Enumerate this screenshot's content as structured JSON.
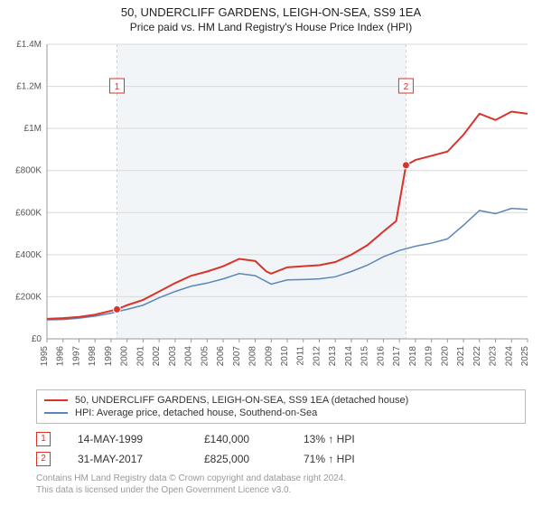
{
  "titles": {
    "main": "50, UNDERCLIFF GARDENS, LEIGH-ON-SEA, SS9 1EA",
    "sub": "Price paid vs. HM Land Registry's House Price Index (HPI)"
  },
  "chart": {
    "type": "line",
    "background_color": "#ffffff",
    "plot_band_color": "#f2f5f8",
    "grid_color": "#d9d9d9",
    "axis_text_color": "#555555",
    "yaxis": {
      "min": 0,
      "max": 1400000,
      "ticks": [
        0,
        200000,
        400000,
        600000,
        800000,
        1000000,
        1200000,
        1400000
      ],
      "labels": [
        "£0",
        "£200K",
        "£400K",
        "£600K",
        "£800K",
        "£1M",
        "£1.2M",
        "£1.4M"
      ]
    },
    "xaxis": {
      "min": 1995,
      "max": 2025,
      "ticks": [
        1995,
        1996,
        1997,
        1998,
        1999,
        2000,
        2001,
        2002,
        2003,
        2004,
        2005,
        2006,
        2007,
        2008,
        2009,
        2010,
        2011,
        2012,
        2013,
        2014,
        2015,
        2016,
        2017,
        2018,
        2019,
        2020,
        2021,
        2022,
        2023,
        2024,
        2025
      ]
    },
    "series": [
      {
        "key": "price_paid",
        "label": "50, UNDERCLIFF GARDENS, LEIGH-ON-SEA, SS9 1EA (detached house)",
        "color": "#d9332a",
        "width": 2,
        "data": [
          [
            1995,
            95000
          ],
          [
            1996,
            98000
          ],
          [
            1997,
            104000
          ],
          [
            1998,
            115000
          ],
          [
            1999.37,
            140000
          ],
          [
            2000,
            160000
          ],
          [
            2001,
            185000
          ],
          [
            2002,
            225000
          ],
          [
            2003,
            265000
          ],
          [
            2004,
            300000
          ],
          [
            2005,
            320000
          ],
          [
            2006,
            345000
          ],
          [
            2007,
            380000
          ],
          [
            2008,
            370000
          ],
          [
            2008.7,
            320000
          ],
          [
            2009,
            310000
          ],
          [
            2010,
            340000
          ],
          [
            2011,
            345000
          ],
          [
            2012,
            350000
          ],
          [
            2013,
            365000
          ],
          [
            2014,
            400000
          ],
          [
            2015,
            445000
          ],
          [
            2016,
            510000
          ],
          [
            2016.8,
            560000
          ],
          [
            2017.41,
            825000
          ],
          [
            2018,
            850000
          ],
          [
            2019,
            870000
          ],
          [
            2020,
            890000
          ],
          [
            2021,
            970000
          ],
          [
            2022,
            1070000
          ],
          [
            2023,
            1040000
          ],
          [
            2024,
            1080000
          ],
          [
            2025,
            1070000
          ]
        ]
      },
      {
        "key": "hpi",
        "label": "HPI: Average price, detached house, Southend-on-Sea",
        "color": "#5b86b8",
        "width": 1.5,
        "data": [
          [
            1995,
            90000
          ],
          [
            1996,
            92000
          ],
          [
            1997,
            98000
          ],
          [
            1998,
            108000
          ],
          [
            1999,
            122000
          ],
          [
            2000,
            140000
          ],
          [
            2001,
            160000
          ],
          [
            2002,
            195000
          ],
          [
            2003,
            225000
          ],
          [
            2004,
            250000
          ],
          [
            2005,
            265000
          ],
          [
            2006,
            285000
          ],
          [
            2007,
            310000
          ],
          [
            2008,
            300000
          ],
          [
            2009,
            260000
          ],
          [
            2010,
            280000
          ],
          [
            2011,
            282000
          ],
          [
            2012,
            285000
          ],
          [
            2013,
            295000
          ],
          [
            2014,
            320000
          ],
          [
            2015,
            350000
          ],
          [
            2016,
            390000
          ],
          [
            2017,
            420000
          ],
          [
            2018,
            440000
          ],
          [
            2019,
            455000
          ],
          [
            2020,
            475000
          ],
          [
            2021,
            540000
          ],
          [
            2022,
            610000
          ],
          [
            2023,
            595000
          ],
          [
            2024,
            620000
          ],
          [
            2025,
            615000
          ]
        ]
      }
    ],
    "markers": [
      {
        "n": "1",
        "x": 1999.37,
        "y": 140000,
        "color": "#d9332a"
      },
      {
        "n": "2",
        "x": 2017.41,
        "y": 825000,
        "color": "#d9332a"
      }
    ],
    "plot_band": {
      "from": 1999.37,
      "to": 2017.41
    }
  },
  "legend": {
    "items": [
      {
        "color": "#d9332a",
        "label": "50, UNDERCLIFF GARDENS, LEIGH-ON-SEA, SS9 1EA (detached house)"
      },
      {
        "color": "#5b86b8",
        "label": "HPI: Average price, detached house, Southend-on-Sea"
      }
    ]
  },
  "sales": [
    {
      "n": "1",
      "date": "14-MAY-1999",
      "price": "£140,000",
      "hpi": "13% ↑ HPI"
    },
    {
      "n": "2",
      "date": "31-MAY-2017",
      "price": "£825,000",
      "hpi": "71% ↑ HPI"
    }
  ],
  "footer": {
    "line1": "Contains HM Land Registry data © Crown copyright and database right 2024.",
    "line2": "This data is licensed under the Open Government Licence v3.0."
  }
}
